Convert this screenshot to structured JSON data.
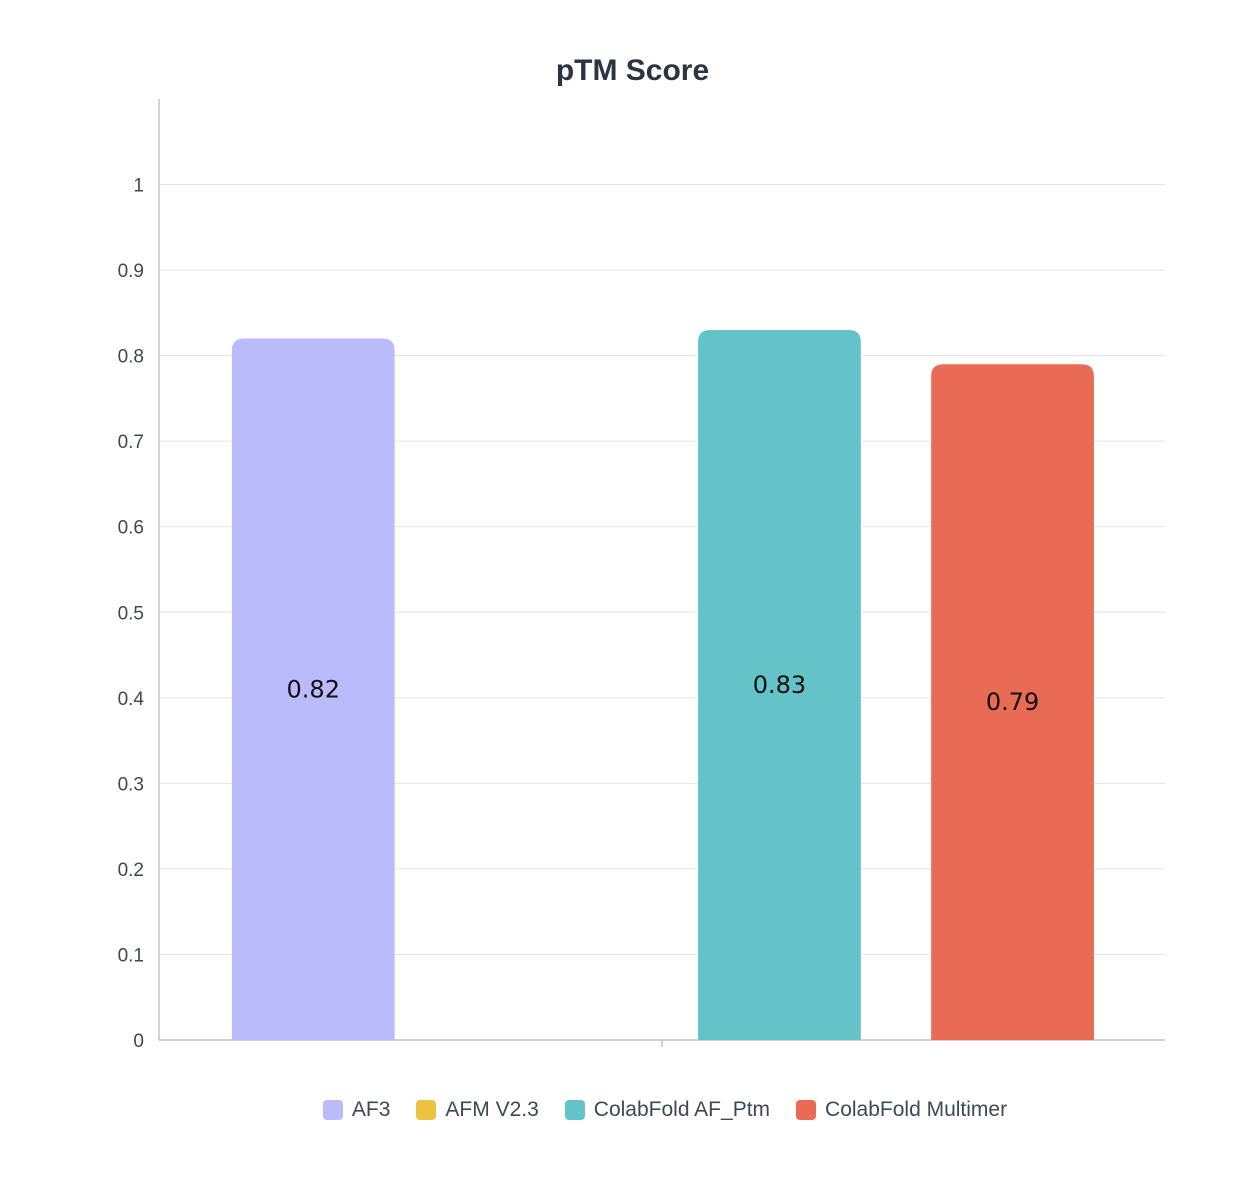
{
  "chart_data": {
    "type": "bar",
    "title": "pTM Score",
    "xlabel": "",
    "ylabel": "",
    "ylim": [
      0,
      1.1
    ],
    "yticks": [
      "0",
      "0.1",
      "0.2",
      "0.3",
      "0.4",
      "0.5",
      "0.6",
      "0.7",
      "0.8",
      "0.9",
      "1"
    ],
    "grid": true,
    "legend_position": "bottom",
    "series": [
      {
        "name": "AF3",
        "values": [
          0.82
        ],
        "color": "#b9bbfa",
        "label": "0.82"
      },
      {
        "name": "AFM V2.3",
        "values": [
          null
        ],
        "color": "#ecc23e",
        "label": ""
      },
      {
        "name": "ColabFold AF_Ptm",
        "values": [
          0.83
        ],
        "color": "#63c3c9",
        "label": "0.83"
      },
      {
        "name": "ColabFold Multimer",
        "values": [
          0.79
        ],
        "color": "#ea6b55",
        "label": "0.79"
      }
    ]
  }
}
